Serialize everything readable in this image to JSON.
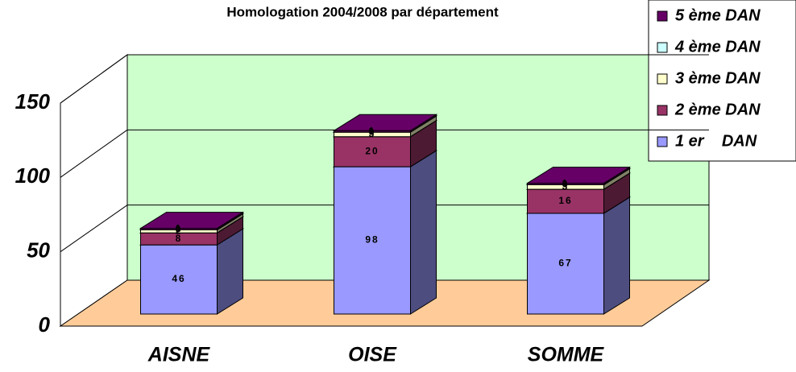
{
  "chart_data": {
    "type": "bar3d_stacked",
    "title": "Homologation 2004/2008 par département",
    "categories": [
      "AISNE",
      "OISE",
      "SOMME"
    ],
    "series": [
      {
        "name": "1 er    DAN",
        "color": "#9999ff",
        "values": [
          46,
          98,
          67
        ]
      },
      {
        "name": "2 ème DAN",
        "color": "#993366",
        "values": [
          8,
          20,
          16
        ]
      },
      {
        "name": "3 ème DAN",
        "color": "#ffffcc",
        "values": [
          2,
          3,
          3
        ]
      },
      {
        "name": "4 ème DAN",
        "color": "#ccffff",
        "values": [
          0,
          0,
          0
        ]
      },
      {
        "name": "5 ème DAN",
        "color": "#660066",
        "values": [
          1,
          1,
          1
        ]
      }
    ],
    "ylim": [
      0,
      150
    ],
    "yticks": [
      0,
      50,
      100,
      150
    ],
    "grid": true,
    "legend": "top-right"
  }
}
